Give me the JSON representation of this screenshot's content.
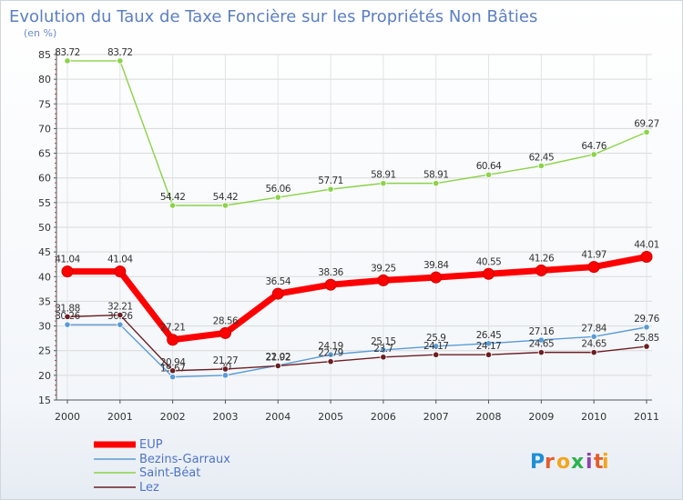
{
  "chart_data": {
    "type": "line",
    "title": "Evolution du Taux de Taxe Foncière sur les Propriétés Non Bâties",
    "ylabel": "(en %)",
    "xlabel": "",
    "categories": [
      "2000",
      "2001",
      "2002",
      "2003",
      "2004",
      "2005",
      "2006",
      "2007",
      "2008",
      "2009",
      "2010",
      "2011"
    ],
    "ylim": [
      15,
      85
    ],
    "yticks": [
      15,
      20,
      25,
      30,
      35,
      40,
      45,
      50,
      55,
      60,
      65,
      70,
      75,
      80,
      85
    ],
    "grid": true,
    "legend_position": "bottom-left",
    "series": [
      {
        "name": "EUP",
        "color": "#ff0000",
        "values": [
          41.04,
          41.04,
          27.21,
          28.56,
          36.54,
          38.36,
          39.25,
          39.84,
          40.55,
          41.26,
          41.97,
          44.01
        ],
        "labels": [
          "41.04",
          "41.04",
          "27.21",
          "28.56",
          "36.54",
          "38.36",
          "39.25",
          "39.84",
          "40.55",
          "41.26",
          "41.97",
          "44.01"
        ]
      },
      {
        "name": "Bezins-Garraux",
        "color": "#5b9bd5",
        "values": [
          30.26,
          30.26,
          19.67,
          20.0,
          22.02,
          24.19,
          25.15,
          25.9,
          26.45,
          27.16,
          27.84,
          29.76
        ],
        "labels": [
          "30.26",
          "30.26",
          "19.67",
          "20",
          "22.02",
          "24.19",
          "25.15",
          "25.9",
          "26.45",
          "27.16",
          "27.84",
          "29.76"
        ]
      },
      {
        "name": "Saint-Béat",
        "color": "#8bd348",
        "values": [
          83.72,
          83.72,
          54.42,
          54.42,
          56.06,
          57.71,
          58.91,
          58.91,
          60.64,
          62.45,
          64.76,
          69.27
        ],
        "labels": [
          "83.72",
          "83.72",
          "54.42",
          "54.42",
          "56.06",
          "57.71",
          "58.91",
          "58.91",
          "60.64",
          "62.45",
          "64.76",
          "69.27"
        ]
      },
      {
        "name": "Lez",
        "color": "#6b1e22",
        "values": [
          31.88,
          32.21,
          20.94,
          21.27,
          21.92,
          22.79,
          23.7,
          24.17,
          24.17,
          24.65,
          24.65,
          25.85
        ],
        "labels": [
          "31.88",
          "32.21",
          "20.94",
          "21.27",
          "21.92",
          "22.79",
          "23.7",
          "24.17",
          "24.17",
          "24.65",
          "24.65",
          "25.85"
        ]
      }
    ]
  },
  "branding": {
    "logo_text": "Proxiti"
  }
}
